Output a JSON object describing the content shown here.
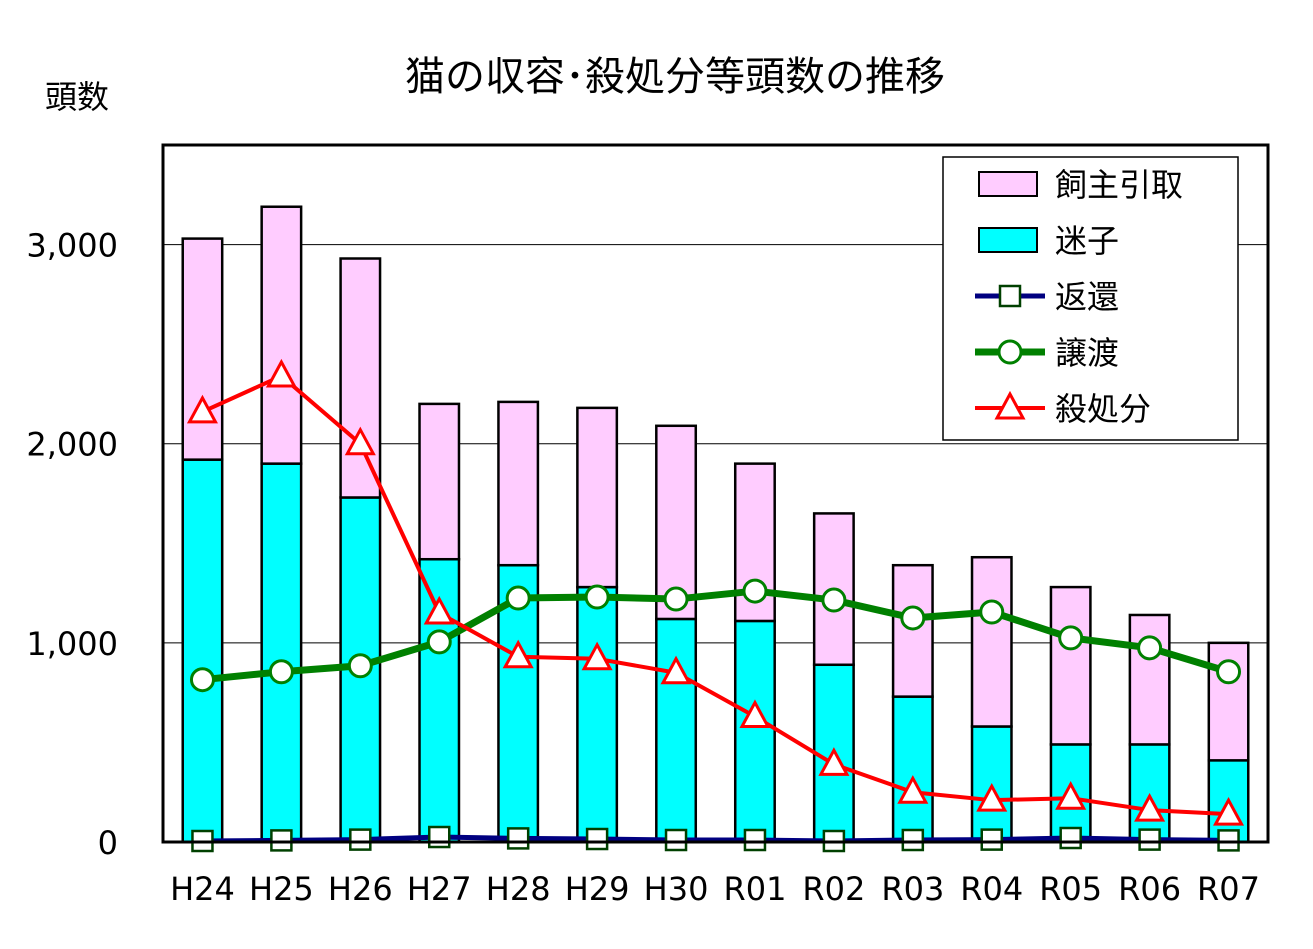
{
  "chart_data": {
    "type": "bar",
    "title": "猫の収容･殺処分等頭数の推移",
    "ylabel": "頭数",
    "xlabel": "",
    "ylim": [
      0,
      3500
    ],
    "yticks": [
      0,
      1000,
      2000,
      3000
    ],
    "ytick_labels": [
      "0",
      "1,000",
      "2,000",
      "3,000"
    ],
    "grid": true,
    "legend_position": "top-right",
    "categories": [
      "H24",
      "H25",
      "H26",
      "H27",
      "H28",
      "H29",
      "H30",
      "R01",
      "R02",
      "R03",
      "R04",
      "R05",
      "R06",
      "R07"
    ],
    "series": [
      {
        "name": "飼主引取",
        "kind": "bar-stacked",
        "color": "#ffccff",
        "values": [
          1110,
          1290,
          1200,
          780,
          820,
          900,
          970,
          790,
          760,
          660,
          850,
          790,
          650,
          590
        ]
      },
      {
        "name": "迷子",
        "kind": "bar-stacked",
        "color": "#00ffff",
        "values": [
          1920,
          1900,
          1730,
          1420,
          1390,
          1280,
          1120,
          1110,
          890,
          730,
          580,
          490,
          490,
          410
        ]
      },
      {
        "name": "返還",
        "kind": "line",
        "color": "#000080",
        "marker": "square",
        "values": [
          5,
          8,
          12,
          25,
          18,
          15,
          10,
          10,
          5,
          10,
          12,
          20,
          12,
          8
        ]
      },
      {
        "name": "譲渡",
        "kind": "line",
        "color": "#008000",
        "marker": "circle",
        "values": [
          815,
          855,
          885,
          1005,
          1225,
          1230,
          1220,
          1260,
          1215,
          1125,
          1155,
          1025,
          975,
          855
        ]
      },
      {
        "name": "殺処分",
        "kind": "line",
        "color": "#ff0000",
        "marker": "triangle",
        "values": [
          2160,
          2340,
          2000,
          1150,
          930,
          920,
          850,
          630,
          390,
          250,
          210,
          220,
          160,
          140
        ]
      }
    ]
  }
}
